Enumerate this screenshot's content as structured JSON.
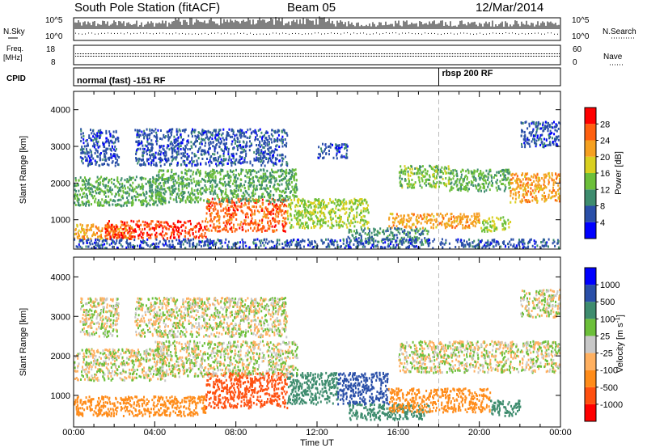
{
  "header": {
    "title": "South Pole Station (fitACF)",
    "beam": "Beam 05",
    "date": "12/Mar/2014"
  },
  "panels": {
    "nsky": {
      "left_label": "N.Sky",
      "right_label": "N.Search",
      "left_ticks": [
        "10^5",
        "10^0"
      ],
      "right_ticks": [
        "10^5",
        "10^0"
      ]
    },
    "freq": {
      "left_label_1": "Freq.",
      "left_label_2": "[MHz]",
      "left_ticks": [
        "18",
        "8"
      ],
      "right_label": "Nave",
      "right_ticks": [
        "60",
        "0"
      ]
    },
    "cpid": {
      "label": "CPID",
      "segments": [
        {
          "text": "normal (fast) -151 RF",
          "start_hour": 0
        },
        {
          "text": "rbsp 200 RF",
          "start_hour": 18
        }
      ]
    }
  },
  "chart_data": [
    {
      "type": "heatmap",
      "title": "",
      "xlabel": "",
      "ylabel": "Slant Range [km]",
      "x_unit": "hours UT",
      "xlim": [
        0,
        24
      ],
      "ylim": [
        200,
        4500
      ],
      "yticks": [
        "1000",
        "2000",
        "3000",
        "4000"
      ],
      "ytick_values": [
        1000,
        2000,
        3000,
        4000
      ],
      "colorbar": {
        "label": "Power [dB]",
        "tick_labels": [
          "4",
          "8",
          "12",
          "16",
          "20",
          "24",
          "28"
        ],
        "range": [
          0,
          30
        ],
        "colors": [
          "#0000ff",
          "#2a4fa8",
          "#3e8c6e",
          "#6cbf3a",
          "#d9d020",
          "#f5a020",
          "#ff6010",
          "#ff0000"
        ]
      },
      "regions": [
        {
          "x0": 0.3,
          "x1": 2.2,
          "y0": 2500,
          "y1": 3500,
          "value": 6
        },
        {
          "x0": 0.0,
          "x1": 4.5,
          "y0": 1400,
          "y1": 2200,
          "value": 12
        },
        {
          "x0": 0.0,
          "x1": 3.0,
          "y0": 500,
          "y1": 900,
          "value": 22
        },
        {
          "x0": 1.5,
          "x1": 6.5,
          "y0": 500,
          "y1": 1000,
          "value": 28
        },
        {
          "x0": 6.5,
          "x1": 10.5,
          "y0": 700,
          "y1": 1600,
          "value": 26
        },
        {
          "x0": 4.0,
          "x1": 11.0,
          "y0": 1500,
          "y1": 2400,
          "value": 12
        },
        {
          "x0": 3.0,
          "x1": 10.5,
          "y0": 2500,
          "y1": 3500,
          "value": 6
        },
        {
          "x0": 10.5,
          "x1": 14.5,
          "y0": 800,
          "y1": 1600,
          "value": 16
        },
        {
          "x0": 12.0,
          "x1": 13.5,
          "y0": 2700,
          "y1": 3100,
          "value": 6
        },
        {
          "x0": 13.5,
          "x1": 17.5,
          "y0": 400,
          "y1": 800,
          "value": 10
        },
        {
          "x0": 15.5,
          "x1": 20.0,
          "y0": 800,
          "y1": 1200,
          "value": 22
        },
        {
          "x0": 16.0,
          "x1": 18.5,
          "y0": 1900,
          "y1": 2500,
          "value": 14
        },
        {
          "x0": 18.5,
          "x1": 21.5,
          "y0": 1800,
          "y1": 2400,
          "value": 12
        },
        {
          "x0": 20.0,
          "x1": 21.5,
          "y0": 700,
          "y1": 1100,
          "value": 16
        },
        {
          "x0": 21.5,
          "x1": 24.0,
          "y0": 1500,
          "y1": 2300,
          "value": 22
        },
        {
          "x0": 22.0,
          "x1": 24.0,
          "y0": 3000,
          "y1": 3700,
          "value": 6
        },
        {
          "x0": 0.0,
          "x1": 24.0,
          "y0": 250,
          "y1": 500,
          "value": 6
        }
      ]
    },
    {
      "type": "heatmap",
      "title": "",
      "xlabel": "Time UT",
      "ylabel": "Slant Range [km]",
      "x_unit": "hours UT",
      "xlim": [
        0,
        24
      ],
      "ylim": [
        200,
        4500
      ],
      "xticks": [
        "00:00",
        "04:00",
        "08:00",
        "12:00",
        "16:00",
        "20:00",
        "00:00"
      ],
      "xtick_values": [
        0,
        4,
        8,
        12,
        16,
        20,
        24
      ],
      "yticks": [
        "1000",
        "2000",
        "3000",
        "4000"
      ],
      "ytick_values": [
        1000,
        2000,
        3000,
        4000
      ],
      "colorbar": {
        "label": "Velocity [m s",
        "label_exponent": "-1",
        "label_close": "]",
        "tick_labels": [
          "-1000",
          "-500",
          "-100",
          "-25",
          "25",
          "100",
          "500",
          "1000"
        ],
        "colors": [
          "#ff0000",
          "#ff5010",
          "#ff8c1a",
          "#ffb060",
          "#c8c8c8",
          "#6cbf3a",
          "#3e8c6e",
          "#2a4fa8",
          "#0000ff"
        ]
      },
      "regions": [
        {
          "x0": 0.0,
          "x1": 4.5,
          "y0": 1400,
          "y1": 2200,
          "value": 0
        },
        {
          "x0": 0.3,
          "x1": 2.2,
          "y0": 2500,
          "y1": 3500,
          "value": 0
        },
        {
          "x0": 0.0,
          "x1": 6.5,
          "y0": 500,
          "y1": 1000,
          "value": -300
        },
        {
          "x0": 6.5,
          "x1": 10.5,
          "y0": 700,
          "y1": 1600,
          "value": -600
        },
        {
          "x0": 4.0,
          "x1": 11.0,
          "y0": 1500,
          "y1": 2400,
          "value": 0
        },
        {
          "x0": 3.0,
          "x1": 10.5,
          "y0": 2500,
          "y1": 3500,
          "value": 0
        },
        {
          "x0": 10.5,
          "x1": 13.0,
          "y0": 800,
          "y1": 1600,
          "value": 300
        },
        {
          "x0": 13.0,
          "x1": 15.5,
          "y0": 800,
          "y1": 1600,
          "value": 800
        },
        {
          "x0": 13.5,
          "x1": 17.5,
          "y0": 400,
          "y1": 800,
          "value": 300
        },
        {
          "x0": 15.5,
          "x1": 20.5,
          "y0": 600,
          "y1": 1200,
          "value": -300
        },
        {
          "x0": 16.0,
          "x1": 24.0,
          "y0": 1600,
          "y1": 2400,
          "value": 0
        },
        {
          "x0": 20.5,
          "x1": 22.0,
          "y0": 500,
          "y1": 900,
          "value": 300
        },
        {
          "x0": 22.0,
          "x1": 24.0,
          "y0": 3000,
          "y1": 3700,
          "value": 0
        }
      ]
    }
  ]
}
